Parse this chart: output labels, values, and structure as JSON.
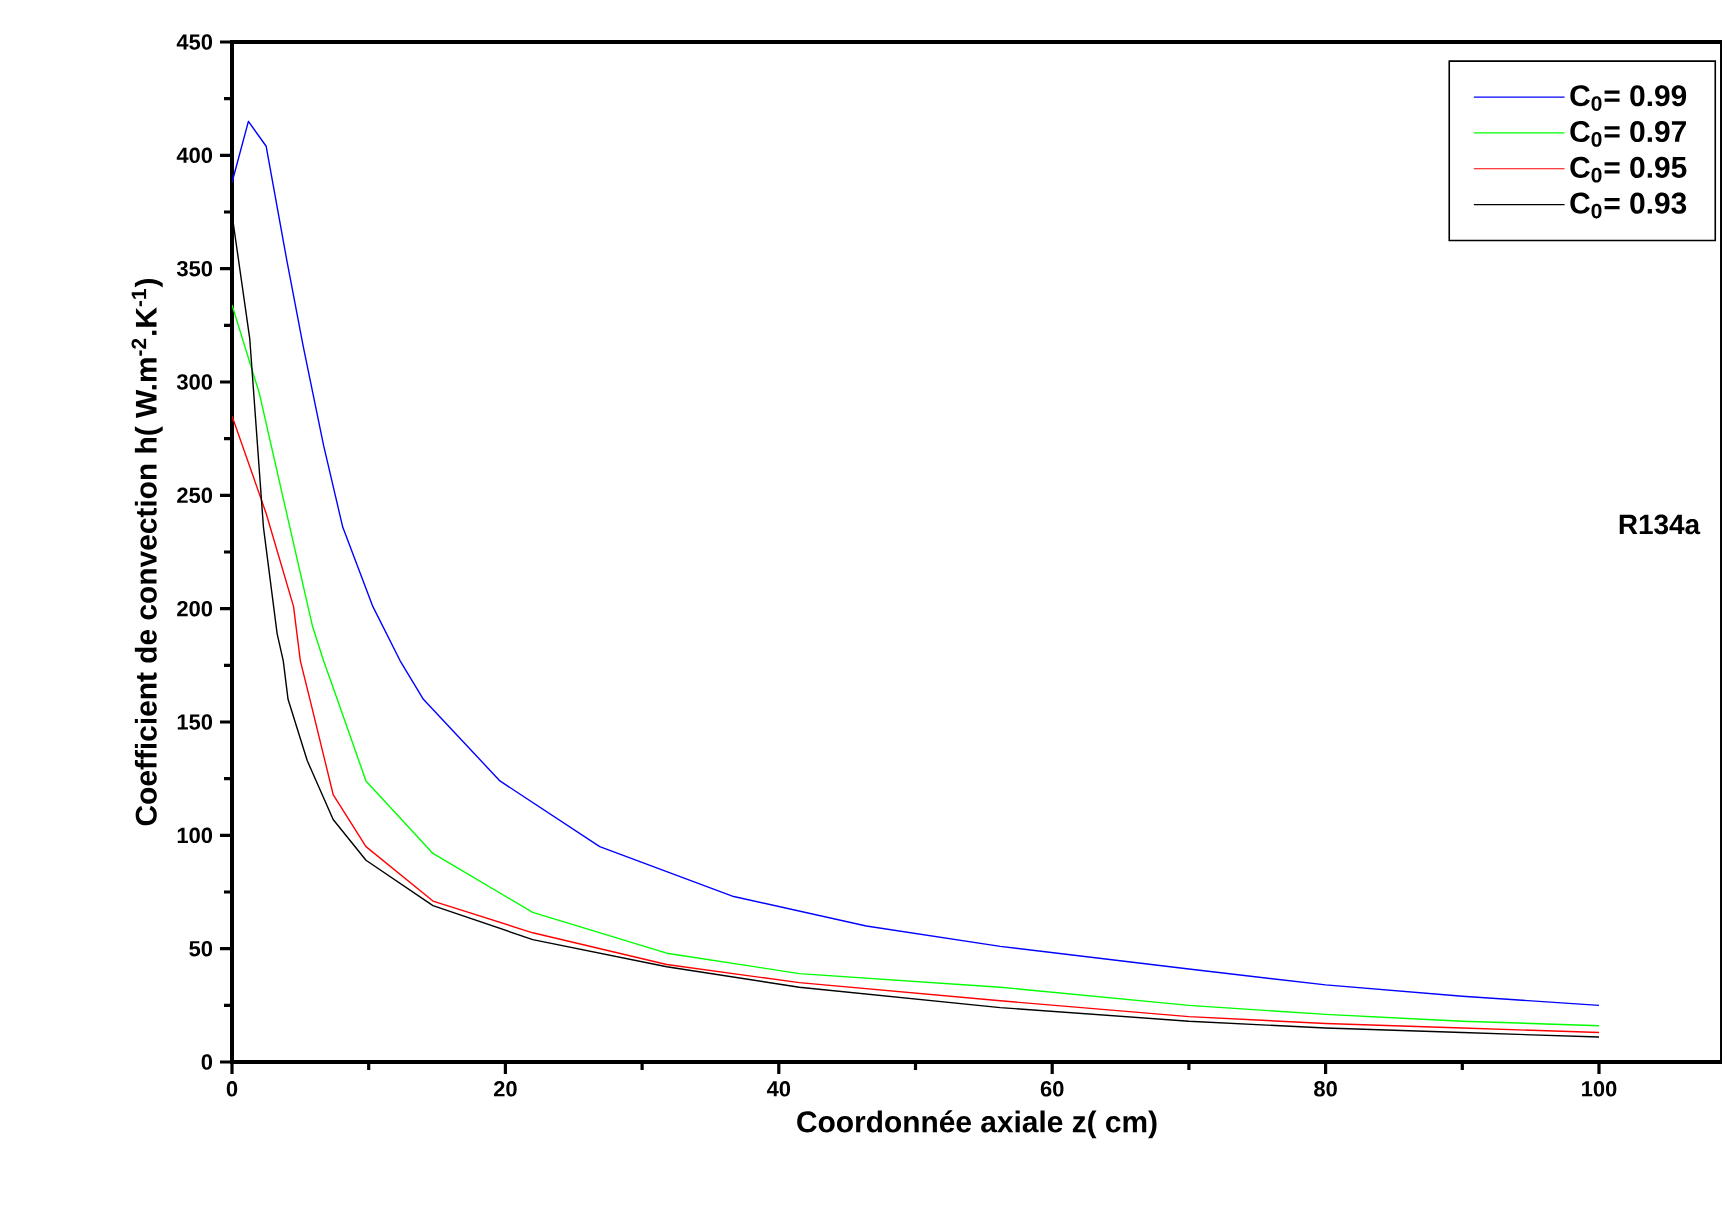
{
  "chart_data": {
    "type": "line",
    "xlabel": "Coordonnée axiale z( cm)",
    "ylabel": "Coefficient de convection h( W.m$^{-2}$.K$^{-1}$)",
    "xlim": [
      0,
      109
    ],
    "ylim": [
      0,
      450
    ],
    "xticks": [
      0,
      20,
      40,
      60,
      80,
      100
    ],
    "yticks": [
      0,
      50,
      100,
      150,
      200,
      250,
      300,
      350,
      400,
      450
    ],
    "legend": "top right",
    "grid": false,
    "marker": "none",
    "line_style": "solid",
    "annotations": [
      "R134a"
    ],
    "series": [
      {
        "name": "C$_{0}$= 0.99",
        "color": "#0000ff",
        "x": [
          0,
          1.2,
          2.5,
          4.0,
          5.2,
          6.7,
          8.1,
          10.3,
          12.3,
          14.0,
          19.6,
          26.9,
          36.7,
          46.4,
          56.2,
          70,
          80,
          90,
          100
        ],
        "values": [
          388,
          415,
          404,
          354,
          316,
          272,
          236,
          201,
          177,
          160,
          124,
          95,
          73,
          60,
          51,
          41,
          34,
          29,
          25
        ]
      },
      {
        "name": "C$_{0}$= 0.97",
        "color": "#00ff00",
        "x": [
          0,
          2.0,
          4.0,
          5.9,
          6.7,
          7.7,
          9.8,
          14.7,
          22,
          31.8,
          41.5,
          56.2,
          70,
          80,
          90,
          100
        ],
        "values": [
          334,
          295,
          242,
          192,
          177,
          160,
          124,
          92,
          66,
          48,
          39,
          33,
          25,
          21,
          18,
          16
        ]
      },
      {
        "name": "C$_{0}$= 0.95",
        "color": "#ff0000",
        "x": [
          0,
          2.5,
          4.5,
          5.0,
          5.7,
          7.4,
          9.8,
          14.7,
          22,
          31.8,
          41.5,
          56.2,
          70,
          80,
          90,
          100
        ],
        "values": [
          285,
          242,
          201,
          177,
          160,
          118,
          95,
          71,
          57,
          43,
          35,
          27,
          20,
          17,
          15,
          13
        ]
      },
      {
        "name": "C$_{0}$= 0.93",
        "color": "#000000",
        "x": [
          0,
          1.3,
          2.3,
          3.3,
          3.75,
          4.1,
          5.5,
          7.4,
          9.8,
          14.7,
          22,
          31.8,
          41.5,
          56.2,
          70,
          80,
          90,
          100
        ],
        "values": [
          374,
          319,
          236,
          189,
          177,
          160,
          133,
          107,
          89,
          69,
          54,
          42,
          33,
          24,
          18,
          15,
          13,
          11
        ]
      }
    ]
  }
}
